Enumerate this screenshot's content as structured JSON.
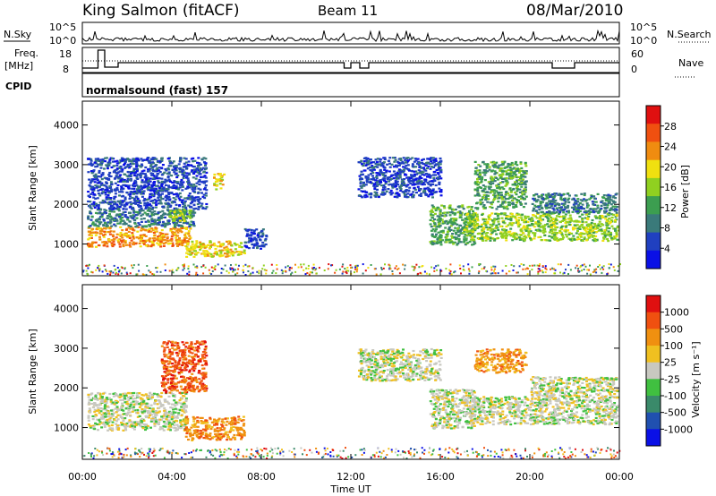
{
  "header": {
    "station": "King Salmon (fitACF)",
    "beam": "Beam 11",
    "date": "08/Mar/2010"
  },
  "top_panels": {
    "nsky_label": "N.Sky",
    "nsky_ticks": [
      "10^5",
      "10^0"
    ],
    "nsearch_label": "N.Search",
    "nsearch_ticks": [
      "10^5",
      "10^0"
    ],
    "freq_label": "Freq.",
    "freq_unit": "[MHz]",
    "freq_ticks": [
      "18",
      "8"
    ],
    "nave_label": "Nave",
    "nave_ticks": [
      "60",
      "0"
    ],
    "cpid_label": "CPID",
    "cpid_value": "normalsound (fast) 157"
  },
  "colors": {
    "power_scale": [
      "#0a10e6",
      "#2040c0",
      "#3a7a7a",
      "#3c9e50",
      "#90d020",
      "#f0e010",
      "#f08c10",
      "#f05010",
      "#e01010"
    ],
    "velocity_scale": [
      "#0a10e6",
      "#2050b0",
      "#3a8a6a",
      "#40c040",
      "#c8c8c0",
      "#f0c020",
      "#f09010",
      "#f05010",
      "#e01010"
    ]
  },
  "chart_data": [
    {
      "type": "heatmap",
      "title": "Power",
      "xlabel": "Time UT",
      "ylabel": "Slant Range [km]",
      "x_ticks": [
        "00:00",
        "04:00",
        "08:00",
        "12:00",
        "16:00",
        "20:00",
        "00:00"
      ],
      "y_ticks": [
        "1000",
        "2000",
        "3000",
        "4000"
      ],
      "colorbar": {
        "label": "Power [dB]",
        "ticks": [
          "28",
          "24",
          "20",
          "16",
          "12",
          "8",
          "4"
        ]
      },
      "regions": [
        {
          "t0": 0.2,
          "t1": 4.8,
          "r0": 950,
          "r1": 1450,
          "level": 6
        },
        {
          "t0": 0.2,
          "t1": 5.0,
          "r0": 1450,
          "r1": 1900,
          "level": 2
        },
        {
          "t0": 0.2,
          "t1": 5.5,
          "r0": 1900,
          "r1": 3200,
          "level": 1
        },
        {
          "t0": 3.8,
          "t1": 4.8,
          "r0": 1600,
          "r1": 1900,
          "level": 4
        },
        {
          "t0": 4.6,
          "t1": 7.2,
          "r0": 700,
          "r1": 1100,
          "level": 5
        },
        {
          "t0": 5.8,
          "t1": 6.3,
          "r0": 2400,
          "r1": 2800,
          "level": 5
        },
        {
          "t0": 7.2,
          "t1": 8.2,
          "r0": 900,
          "r1": 1400,
          "level": 1
        },
        {
          "t0": 12.3,
          "t1": 16.0,
          "r0": 2200,
          "r1": 3200,
          "level": 1
        },
        {
          "t0": 15.5,
          "t1": 17.5,
          "r0": 1000,
          "r1": 2000,
          "level": 3
        },
        {
          "t0": 17.0,
          "t1": 23.9,
          "r0": 1100,
          "r1": 1800,
          "level": 4
        },
        {
          "t0": 17.5,
          "t1": 19.8,
          "r0": 1900,
          "r1": 3100,
          "level": 3
        },
        {
          "t0": 20.0,
          "t1": 23.9,
          "r0": 1800,
          "r1": 2300,
          "level": 2
        }
      ]
    },
    {
      "type": "heatmap",
      "title": "Velocity",
      "xlabel": "Time UT",
      "ylabel": "Slant Range [km]",
      "x_ticks": [
        "00:00",
        "04:00",
        "08:00",
        "12:00",
        "16:00",
        "20:00",
        "00:00"
      ],
      "y_ticks": [
        "1000",
        "2000",
        "3000",
        "4000"
      ],
      "colorbar": {
        "label": "Velocity [m s⁻¹]",
        "ticks": [
          "1000",
          "500",
          "100",
          "25",
          "-25",
          "-100",
          "-500",
          "-1000"
        ]
      },
      "regions": [
        {
          "t0": 0.2,
          "t1": 4.6,
          "r0": 950,
          "r1": 1900,
          "level": 4
        },
        {
          "t0": 3.5,
          "t1": 5.5,
          "r0": 1900,
          "r1": 3200,
          "level": 7
        },
        {
          "t0": 4.5,
          "t1": 7.2,
          "r0": 700,
          "r1": 1300,
          "level": 6
        },
        {
          "t0": 12.3,
          "t1": 16.0,
          "r0": 2200,
          "r1": 3000,
          "level": 4
        },
        {
          "t0": 15.5,
          "t1": 17.5,
          "r0": 1000,
          "r1": 2000,
          "level": 4
        },
        {
          "t0": 17.0,
          "t1": 23.9,
          "r0": 1100,
          "r1": 1800,
          "level": 4
        },
        {
          "t0": 17.5,
          "t1": 19.8,
          "r0": 2400,
          "r1": 3000,
          "level": 6
        },
        {
          "t0": 20.0,
          "t1": 23.9,
          "r0": 1800,
          "r1": 2300,
          "level": 4
        }
      ]
    }
  ]
}
